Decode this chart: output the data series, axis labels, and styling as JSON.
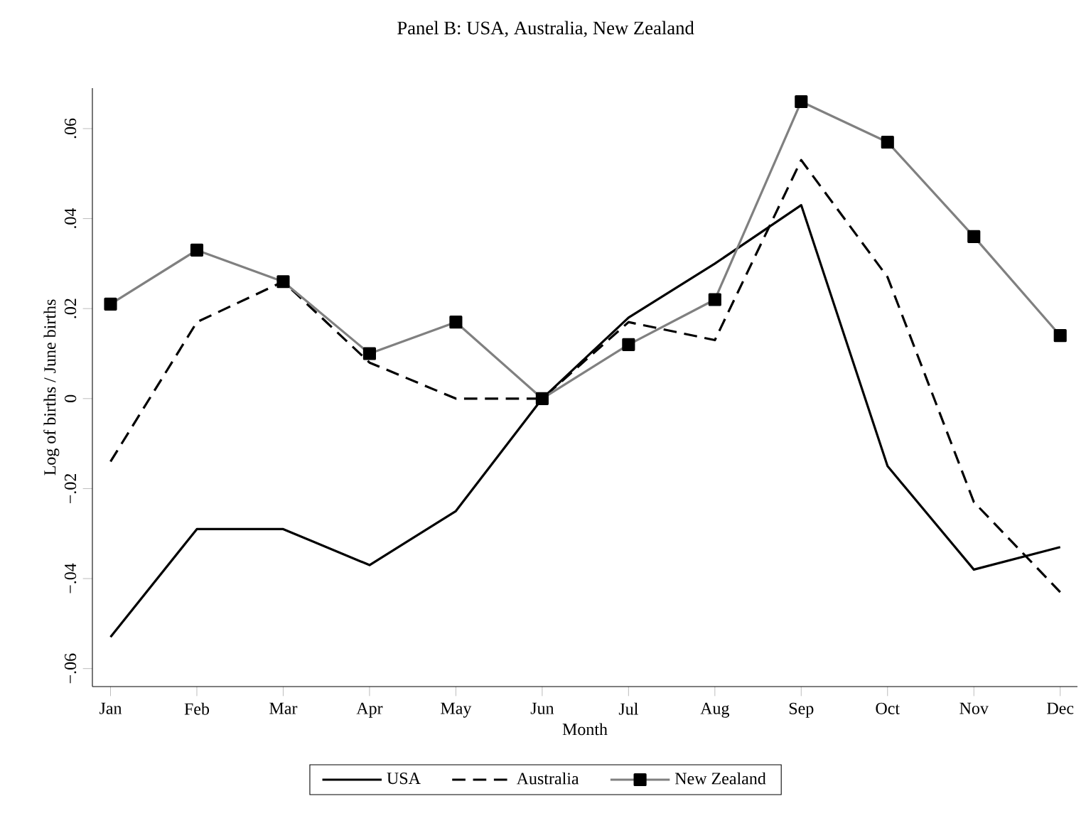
{
  "chart_data": {
    "type": "line",
    "title": "Panel B: USA, Australia, New Zealand",
    "xlabel": "Month",
    "ylabel": "Log of births / June births",
    "categories": [
      "Jan",
      "Feb",
      "Mar",
      "Apr",
      "May",
      "Jun",
      "Jul",
      "Aug",
      "Sep",
      "Oct",
      "Nov",
      "Dec"
    ],
    "series": [
      {
        "name": "USA",
        "color": "#000000",
        "line_style": "solid",
        "marker": "none",
        "values": [
          -0.053,
          -0.029,
          -0.029,
          -0.037,
          -0.025,
          0,
          0.018,
          0.03,
          0.043,
          -0.015,
          -0.038,
          -0.033
        ]
      },
      {
        "name": "Australia",
        "color": "#000000",
        "line_style": "dashed",
        "marker": "none",
        "values": [
          -0.014,
          0.017,
          0.026,
          0.008,
          0,
          0,
          0.017,
          0.013,
          0.053,
          0.027,
          -0.023,
          -0.043
        ]
      },
      {
        "name": "New Zealand",
        "color": "#808080",
        "line_style": "solid",
        "marker": "square",
        "values": [
          0.021,
          0.033,
          0.026,
          0.01,
          0.017,
          0,
          0.012,
          0.022,
          0.066,
          0.057,
          0.036,
          0.014
        ]
      }
    ],
    "ylim": [
      -0.064,
      0.069
    ],
    "yticks": [
      {
        "value": -0.06,
        "label": "−.06"
      },
      {
        "value": -0.04,
        "label": "−.04"
      },
      {
        "value": -0.02,
        "label": "−.02"
      },
      0,
      {
        "value": 0.02,
        "label": ".02"
      },
      {
        "value": 0.04,
        "label": ".04"
      },
      {
        "value": 0.06,
        "label": ".06"
      }
    ],
    "grid": false,
    "legend": "bottom"
  }
}
